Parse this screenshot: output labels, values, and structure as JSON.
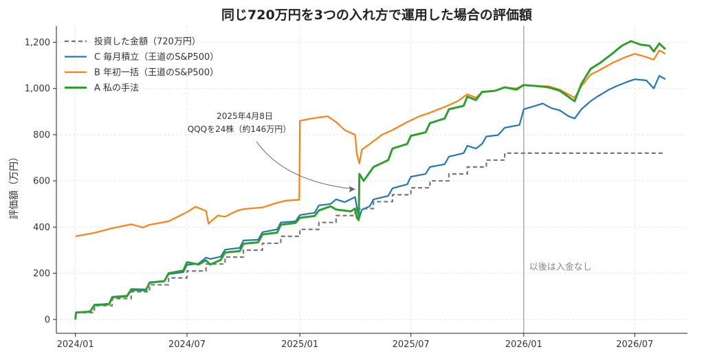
{
  "chart_data": {
    "type": "line",
    "title": "同じ720万円を3つの入れ方で運用した場合の評価額",
    "xlabel": "",
    "ylabel": "評価額（万円）",
    "xlim": [
      "2023-12-01",
      "2026-09-25"
    ],
    "ylim": [
      -60,
      1270
    ],
    "x_ticks": [
      "2024-01-01",
      "2024-07-01",
      "2025-01-01",
      "2025-07-01",
      "2026-01-01",
      "2026-07-01"
    ],
    "x_tick_labels": [
      "2024/01",
      "2024/07",
      "2025/01",
      "2025/07",
      "2026/01",
      "2026/07"
    ],
    "y_ticks": [
      0,
      200,
      400,
      600,
      800,
      1000,
      1200
    ],
    "y_tick_labels": [
      "0",
      "200",
      "400",
      "600",
      "800",
      "1,000",
      "1,200"
    ],
    "grid": true,
    "legend": "top-left",
    "vline": {
      "x": "2026-01-01",
      "label": "以後は入金なし"
    },
    "annotation": {
      "lines": [
        "2025年4月8日",
        "QQQを24株（約146万円）"
      ],
      "point": {
        "x": "2025-04-08",
        "y": 570
      }
    },
    "series": [
      {
        "name": "投資した金額（720万円）",
        "color": "#777777",
        "style": "dashed",
        "step": true,
        "points": [
          [
            "2024-01-01",
            30
          ],
          [
            "2024-02-01",
            60
          ],
          [
            "2024-03-01",
            90
          ],
          [
            "2024-04-01",
            120
          ],
          [
            "2024-05-01",
            150
          ],
          [
            "2024-06-01",
            180
          ],
          [
            "2024-07-01",
            210
          ],
          [
            "2024-08-01",
            240
          ],
          [
            "2024-09-01",
            270
          ],
          [
            "2024-10-01",
            300
          ],
          [
            "2024-11-01",
            330
          ],
          [
            "2024-12-01",
            360
          ],
          [
            "2025-01-01",
            390
          ],
          [
            "2025-02-01",
            420
          ],
          [
            "2025-03-01",
            450
          ],
          [
            "2025-04-01",
            480
          ],
          [
            "2025-05-01",
            510
          ],
          [
            "2025-06-01",
            540
          ],
          [
            "2025-07-01",
            570
          ],
          [
            "2025-08-01",
            600
          ],
          [
            "2025-09-01",
            630
          ],
          [
            "2025-10-01",
            660
          ],
          [
            "2025-11-01",
            690
          ],
          [
            "2025-12-01",
            720
          ],
          [
            "2026-08-20",
            720
          ]
        ]
      },
      {
        "name": "C 毎月積立（王道のS&P500）",
        "color": "#1f77b4",
        "style": "solid",
        "points": [
          [
            "2024-01-01",
            30
          ],
          [
            "2024-01-25",
            33
          ],
          [
            "2024-02-01",
            64
          ],
          [
            "2024-02-25",
            68
          ],
          [
            "2024-03-01",
            98
          ],
          [
            "2024-03-25",
            103
          ],
          [
            "2024-04-01",
            132
          ],
          [
            "2024-04-25",
            130
          ],
          [
            "2024-05-01",
            158
          ],
          [
            "2024-05-25",
            165
          ],
          [
            "2024-06-01",
            196
          ],
          [
            "2024-06-25",
            205
          ],
          [
            "2024-07-01",
            236
          ],
          [
            "2024-07-20",
            242
          ],
          [
            "2024-08-01",
            268
          ],
          [
            "2024-08-08",
            262
          ],
          [
            "2024-08-25",
            272
          ],
          [
            "2024-09-01",
            302
          ],
          [
            "2024-09-25",
            310
          ],
          [
            "2024-10-01",
            342
          ],
          [
            "2024-10-25",
            345
          ],
          [
            "2024-11-01",
            378
          ],
          [
            "2024-11-25",
            390
          ],
          [
            "2024-12-01",
            420
          ],
          [
            "2024-12-25",
            425
          ],
          [
            "2025-01-01",
            452
          ],
          [
            "2025-01-25",
            462
          ],
          [
            "2025-02-01",
            494
          ],
          [
            "2025-02-20",
            500
          ],
          [
            "2025-03-01",
            520
          ],
          [
            "2025-03-15",
            508
          ],
          [
            "2025-04-01",
            530
          ],
          [
            "2025-04-05",
            470
          ],
          [
            "2025-04-08",
            440
          ],
          [
            "2025-04-12",
            475
          ],
          [
            "2025-04-25",
            490
          ],
          [
            "2025-05-01",
            520
          ],
          [
            "2025-05-25",
            535
          ],
          [
            "2025-06-01",
            568
          ],
          [
            "2025-06-25",
            585
          ],
          [
            "2025-07-01",
            618
          ],
          [
            "2025-07-25",
            630
          ],
          [
            "2025-08-01",
            660
          ],
          [
            "2025-08-25",
            672
          ],
          [
            "2025-09-01",
            705
          ],
          [
            "2025-09-25",
            720
          ],
          [
            "2025-10-01",
            752
          ],
          [
            "2025-10-15",
            740
          ],
          [
            "2025-10-25",
            760
          ],
          [
            "2025-11-01",
            792
          ],
          [
            "2025-11-20",
            798
          ],
          [
            "2025-12-01",
            830
          ],
          [
            "2025-12-25",
            842
          ],
          [
            "2026-01-01",
            910
          ],
          [
            "2026-01-20",
            925
          ],
          [
            "2026-02-01",
            935
          ],
          [
            "2026-02-15",
            915
          ],
          [
            "2026-03-01",
            905
          ],
          [
            "2026-03-15",
            880
          ],
          [
            "2026-03-25",
            870
          ],
          [
            "2026-04-05",
            910
          ],
          [
            "2026-04-20",
            945
          ],
          [
            "2026-05-01",
            965
          ],
          [
            "2026-05-20",
            995
          ],
          [
            "2026-06-01",
            1010
          ],
          [
            "2026-06-20",
            1030
          ],
          [
            "2026-07-01",
            1040
          ],
          [
            "2026-07-20",
            1035
          ],
          [
            "2026-08-01",
            1000
          ],
          [
            "2026-08-10",
            1055
          ],
          [
            "2026-08-20",
            1040
          ]
        ]
      },
      {
        "name": "B 年初一括（王道のS&P500）",
        "color": "#ff7f0e",
        "style": "solid",
        "points": [
          [
            "2024-01-01",
            360
          ],
          [
            "2024-02-01",
            375
          ],
          [
            "2024-03-01",
            395
          ],
          [
            "2024-04-01",
            412
          ],
          [
            "2024-04-20",
            398
          ],
          [
            "2024-05-01",
            410
          ],
          [
            "2024-06-01",
            425
          ],
          [
            "2024-07-01",
            465
          ],
          [
            "2024-07-15",
            488
          ],
          [
            "2024-08-01",
            470
          ],
          [
            "2024-08-05",
            415
          ],
          [
            "2024-08-20",
            450
          ],
          [
            "2024-09-01",
            445
          ],
          [
            "2024-09-20",
            470
          ],
          [
            "2024-10-01",
            478
          ],
          [
            "2024-11-01",
            485
          ],
          [
            "2024-11-25",
            505
          ],
          [
            "2024-12-10",
            515
          ],
          [
            "2024-12-31",
            518
          ],
          [
            "2025-01-01",
            860
          ],
          [
            "2025-01-20",
            870
          ],
          [
            "2025-02-15",
            880
          ],
          [
            "2025-03-01",
            855
          ],
          [
            "2025-03-15",
            820
          ],
          [
            "2025-04-01",
            800
          ],
          [
            "2025-04-04",
            715
          ],
          [
            "2025-04-08",
            675
          ],
          [
            "2025-04-12",
            735
          ],
          [
            "2025-04-25",
            760
          ],
          [
            "2025-05-15",
            800
          ],
          [
            "2025-06-01",
            820
          ],
          [
            "2025-06-25",
            855
          ],
          [
            "2025-07-15",
            880
          ],
          [
            "2025-08-01",
            895
          ],
          [
            "2025-08-25",
            920
          ],
          [
            "2025-09-15",
            945
          ],
          [
            "2025-10-01",
            975
          ],
          [
            "2025-10-15",
            960
          ],
          [
            "2025-10-25",
            985
          ],
          [
            "2025-11-15",
            990
          ],
          [
            "2025-12-01",
            1005
          ],
          [
            "2025-12-20",
            1000
          ],
          [
            "2026-01-01",
            1015
          ],
          [
            "2026-01-25",
            1010
          ],
          [
            "2026-02-10",
            1010
          ],
          [
            "2026-03-01",
            995
          ],
          [
            "2026-03-25",
            960
          ],
          [
            "2026-04-05",
            1010
          ],
          [
            "2026-04-20",
            1060
          ],
          [
            "2026-05-05",
            1080
          ],
          [
            "2026-05-25",
            1110
          ],
          [
            "2026-06-15",
            1135
          ],
          [
            "2026-07-01",
            1150
          ],
          [
            "2026-07-15",
            1140
          ],
          [
            "2026-08-01",
            1125
          ],
          [
            "2026-08-10",
            1165
          ],
          [
            "2026-08-20",
            1150
          ]
        ]
      },
      {
        "name": "A 私の手法",
        "color": "#2ca02c",
        "style": "solid",
        "width": 3,
        "points": [
          [
            "2024-01-01",
            0
          ],
          [
            "2024-01-02",
            30
          ],
          [
            "2024-01-25",
            34
          ],
          [
            "2024-02-01",
            62
          ],
          [
            "2024-02-25",
            66
          ],
          [
            "2024-03-01",
            96
          ],
          [
            "2024-03-25",
            100
          ],
          [
            "2024-04-01",
            128
          ],
          [
            "2024-04-25",
            126
          ],
          [
            "2024-05-01",
            160
          ],
          [
            "2024-05-25",
            166
          ],
          [
            "2024-06-01",
            200
          ],
          [
            "2024-06-25",
            212
          ],
          [
            "2024-07-01",
            248
          ],
          [
            "2024-07-20",
            238
          ],
          [
            "2024-08-01",
            256
          ],
          [
            "2024-08-08",
            238
          ],
          [
            "2024-08-25",
            258
          ],
          [
            "2024-09-01",
            290
          ],
          [
            "2024-09-25",
            296
          ],
          [
            "2024-10-01",
            328
          ],
          [
            "2024-10-25",
            334
          ],
          [
            "2024-11-01",
            368
          ],
          [
            "2024-11-25",
            376
          ],
          [
            "2024-12-01",
            410
          ],
          [
            "2024-12-25",
            418
          ],
          [
            "2025-01-01",
            440
          ],
          [
            "2025-01-25",
            448
          ],
          [
            "2025-02-01",
            472
          ],
          [
            "2025-02-20",
            490
          ],
          [
            "2025-03-01",
            476
          ],
          [
            "2025-03-25",
            468
          ],
          [
            "2025-04-01",
            480
          ],
          [
            "2025-04-04",
            440
          ],
          [
            "2025-04-07",
            430
          ],
          [
            "2025-04-08",
            630
          ],
          [
            "2025-04-15",
            600
          ],
          [
            "2025-05-01",
            660
          ],
          [
            "2025-05-25",
            690
          ],
          [
            "2025-06-01",
            740
          ],
          [
            "2025-06-25",
            760
          ],
          [
            "2025-07-01",
            795
          ],
          [
            "2025-07-25",
            810
          ],
          [
            "2025-08-01",
            850
          ],
          [
            "2025-08-25",
            870
          ],
          [
            "2025-09-01",
            910
          ],
          [
            "2025-09-25",
            925
          ],
          [
            "2025-10-01",
            965
          ],
          [
            "2025-10-15",
            950
          ],
          [
            "2025-10-25",
            985
          ],
          [
            "2025-11-15",
            990
          ],
          [
            "2025-12-01",
            1005
          ],
          [
            "2025-12-20",
            995
          ],
          [
            "2026-01-01",
            1015
          ],
          [
            "2026-01-25",
            1010
          ],
          [
            "2026-02-10",
            1005
          ],
          [
            "2026-03-01",
            990
          ],
          [
            "2026-03-25",
            945
          ],
          [
            "2026-04-05",
            1020
          ],
          [
            "2026-04-20",
            1085
          ],
          [
            "2026-05-05",
            1110
          ],
          [
            "2026-05-25",
            1150
          ],
          [
            "2026-06-10",
            1185
          ],
          [
            "2026-06-25",
            1205
          ],
          [
            "2026-07-10",
            1190
          ],
          [
            "2026-07-25",
            1185
          ],
          [
            "2026-08-01",
            1160
          ],
          [
            "2026-08-10",
            1195
          ],
          [
            "2026-08-20",
            1170
          ]
        ]
      }
    ]
  }
}
